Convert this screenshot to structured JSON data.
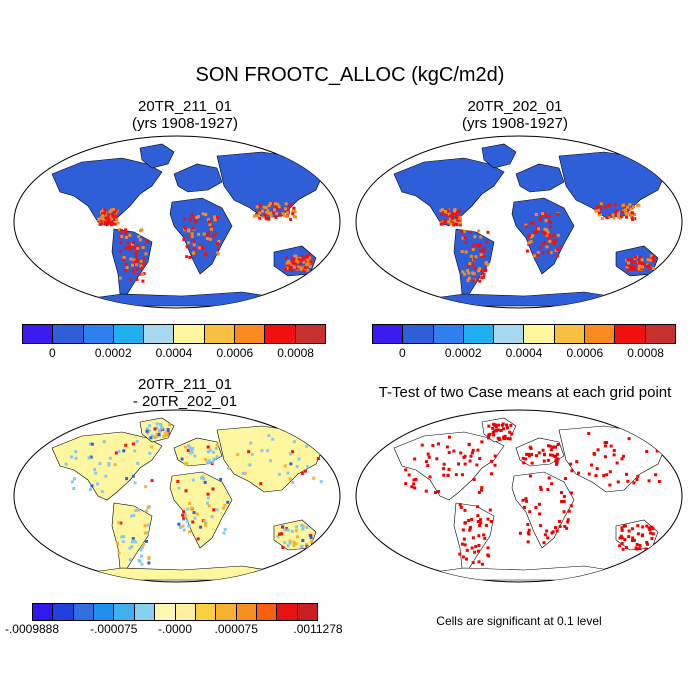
{
  "title": "SON FROOTC_ALLOC (kgC/m2d)",
  "panels": {
    "a": {
      "line1": "20TR_211_01",
      "line2": "(yrs 1908-1927)"
    },
    "b": {
      "line1": "20TR_202_01",
      "line2": "(yrs 1908-1927)"
    },
    "c": {
      "line1": "20TR_211_01",
      "line2": "- 20TR_202_01"
    },
    "d": {
      "line1": "T-Test of two Case means at each grid point"
    }
  },
  "colorbar_top": {
    "colors": [
      "#3a1cf0",
      "#2f5fd8",
      "#2f7ff0",
      "#20b0f0",
      "#a8d8f0",
      "#fff7a0",
      "#f8c040",
      "#f88a20",
      "#f01010",
      "#c83030"
    ],
    "labels": [
      "0",
      "0.0002",
      "0.0004",
      "0.0006",
      "0.0008"
    ]
  },
  "colorbar_diff": {
    "colors": [
      "#3018f0",
      "#2040e0",
      "#2f6fe0",
      "#2090f0",
      "#40b0f0",
      "#88d0f0",
      "#fff8b0",
      "#fff0a0",
      "#f8d040",
      "#f8b030",
      "#f89020",
      "#f86010",
      "#e81010",
      "#c82020"
    ],
    "labels": [
      "-.0009888",
      "-.000075",
      "-.0000",
      ".000075",
      ".0011278"
    ]
  },
  "significance_note": "Cells are significant at 0.1 level",
  "map_colors": {
    "ocean": "#ffffff",
    "low": "#2f5fd8",
    "tropics_hot": "#f01010",
    "tropics_warm": "#f88a20",
    "diff_base": "#fff7a0",
    "diff_neg": "#88c8f0",
    "signif": "#ee0000"
  }
}
